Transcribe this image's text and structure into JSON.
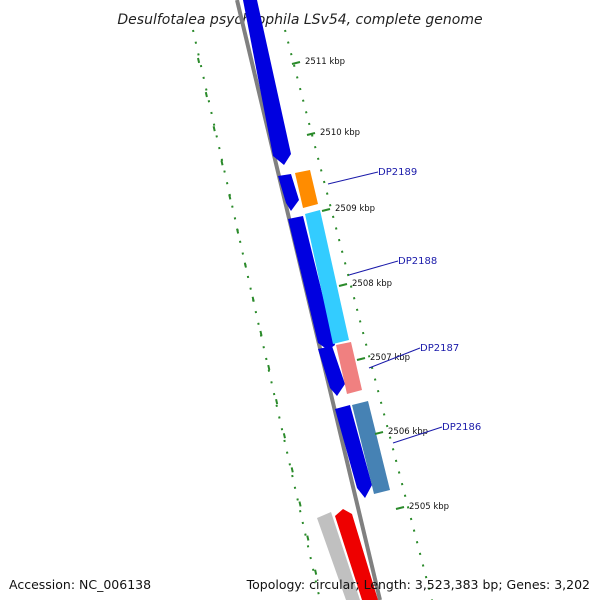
{
  "title": "Desulfotalea psychrophila LSv54, complete genome",
  "footer": {
    "accession": "Accession: NC_006138",
    "topology": "Topology: circular; Length: 3,523,383 bp; Genes: 3,202"
  },
  "ticks": [
    "2511 kbp",
    "2510 kbp",
    "2509 kbp",
    "2508 kbp",
    "2507 kbp",
    "2506 kbp",
    "2505 kbp"
  ],
  "gene_labels": [
    "DP2189",
    "DP2188",
    "DP2187",
    "DP2186"
  ],
  "colors": {
    "backbone": "#808080",
    "reverse_gene": "#0000e0",
    "tick": "#2a8a2a",
    "label": "#1a1aaa",
    "DP2189": "#ff8c00",
    "DP2188": "#33ccff",
    "DP2187": "#f08080",
    "DP2186": "#4682b4",
    "rna": "#ee0000",
    "other": "#c0c0c0"
  }
}
